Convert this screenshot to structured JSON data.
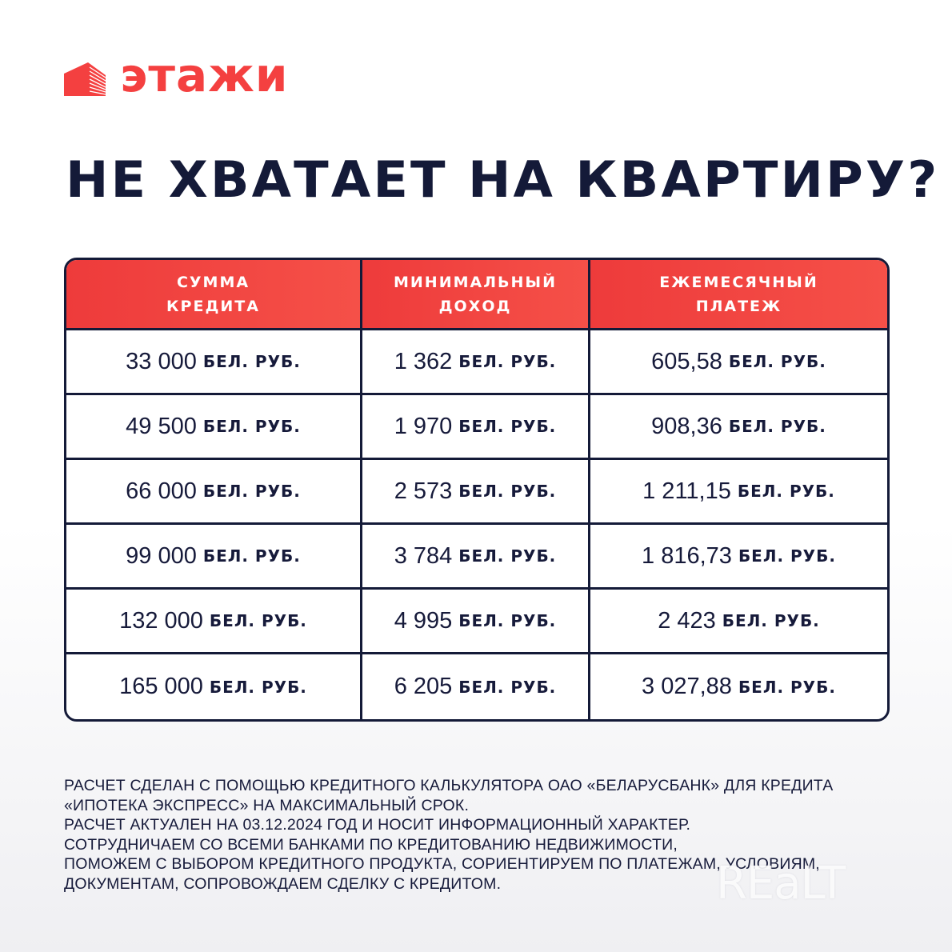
{
  "brand": {
    "name": "этажи",
    "color": "#f44040"
  },
  "title": "НЕ ХВАТАЕТ НА КВАРТИРУ?",
  "table": {
    "headers": [
      "СУММА\nКРЕДИТА",
      "МИНИМАЛЬНЫЙ\nДОХОД",
      "ЕЖЕМЕСЯЧНЫЙ\nПЛАТЕЖ"
    ],
    "unit": "БЕЛ. РУБ.",
    "rows": [
      [
        "33 000",
        "1 362",
        "605,58"
      ],
      [
        "49 500",
        "1 970",
        "908,36"
      ],
      [
        "66 000",
        "2 573",
        "1 211,15"
      ],
      [
        "99 000",
        "3 784",
        "1 816,73"
      ],
      [
        "132 000",
        "4 995",
        "2 423"
      ],
      [
        "165 000",
        "6 205",
        "3 027,88"
      ]
    ]
  },
  "footnote": [
    "РАСЧЕТ СДЕЛАН С ПОМОЩЬЮ КРЕДИТНОГО КАЛЬКУЛЯТОРА ОАО «БЕЛАРУСБАНК» ДЛЯ КРЕДИТА",
    "«ИПОТЕКА ЭКСПРЕСС» НА МАКСИМАЛЬНЫЙ СРОК.",
    "РАСЧЕТ АКТУАЛЕН НА 03.12.2024 ГОД И НОСИТ ИНФОРМАЦИОННЫЙ ХАРАКТЕР.",
    "СОТРУДНИЧАЕМ СО ВСЕМИ БАНКАМИ ПО КРЕДИТОВАНИЮ НЕДВИЖИМОСТИ,",
    "ПОМОЖЕМ С ВЫБОРОМ КРЕДИТНОГО ПРОДУКТА, СОРИЕНТИРУЕМ ПО ПЛАТЕЖАМ, УСЛОВИЯМ,",
    "ДОКУМЕНТАМ, СОПРОВОЖДАЕМ СДЕЛКУ С КРЕДИТОМ."
  ],
  "watermark": "REaLT"
}
